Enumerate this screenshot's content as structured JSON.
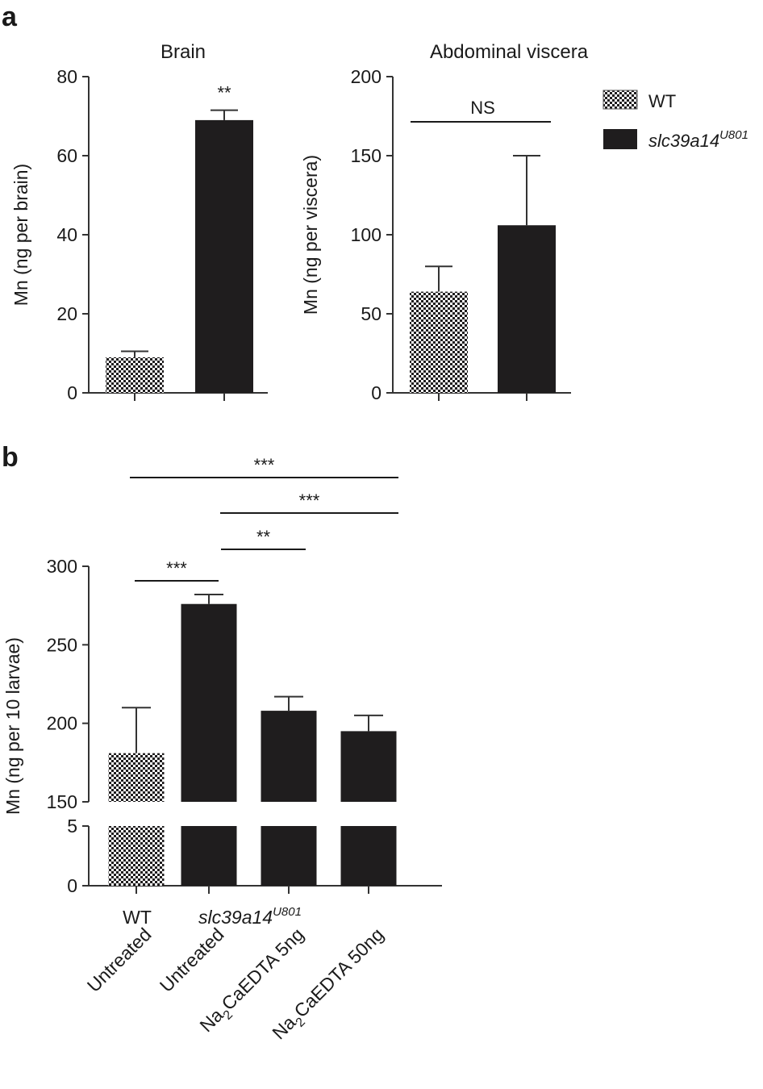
{
  "colors": {
    "mutant": "#1f1d1e",
    "axis": "#333333",
    "checker_dark": "#1f1d1e",
    "checker_light": "#ffffff"
  },
  "chart_data": [
    {
      "panel": "a",
      "type": "bar",
      "title": "Brain",
      "ylabel": "Mn (ng per brain)",
      "ylim": [
        0,
        80
      ],
      "yticks": [
        "0",
        "20",
        "40",
        "60",
        "80"
      ],
      "yticks_values": [
        0,
        20,
        40,
        60,
        80
      ],
      "categories": [
        "WT",
        "slc39a14U801"
      ],
      "values": [
        9,
        69
      ],
      "error_upper": [
        10.5,
        71.5
      ],
      "annotations": [
        {
          "text": "**",
          "bar": 1
        }
      ]
    },
    {
      "panel": "a",
      "type": "bar",
      "title": "Abdominal viscera",
      "ylabel": "Mn (ng per viscera)",
      "ylim": [
        0,
        200
      ],
      "yticks": [
        "0",
        "50",
        "100",
        "150",
        "200"
      ],
      "yticks_values": [
        0,
        50,
        100,
        150,
        200
      ],
      "categories": [
        "WT",
        "slc39a14U801"
      ],
      "values": [
        64,
        106
      ],
      "error_upper": [
        80,
        150
      ],
      "annotations": [
        {
          "text": "NS",
          "from": 0,
          "to": 1
        }
      ]
    },
    {
      "panel": "b",
      "type": "bar",
      "ylabel": "Mn (ng per 10 larvae)",
      "ylim_upper": [
        150,
        300
      ],
      "ylim_lower": [
        0,
        5
      ],
      "yticks_upper": [
        "150",
        "200",
        "250",
        "300"
      ],
      "yticks_upper_values": [
        150,
        200,
        250,
        300
      ],
      "yticks_lower": [
        "0",
        "5"
      ],
      "yticks_lower_values": [
        0,
        5
      ],
      "group_labels": [
        {
          "text": "WT",
          "italic": false
        },
        {
          "text": "slc39a14",
          "sup": "U801",
          "italic": true
        }
      ],
      "categories": [
        {
          "main": "Untreated",
          "sub": ""
        },
        {
          "main": "Untreated",
          "sub": ""
        },
        {
          "pre": "Na",
          "sub": "2",
          "main": "CaEDTA 5ng"
        },
        {
          "pre": "Na",
          "sub": "2",
          "main": "CaEDTA 50ng"
        }
      ],
      "genotype": [
        "WT",
        "mutant",
        "mutant",
        "mutant"
      ],
      "values": [
        181,
        276,
        208,
        195
      ],
      "error_upper": [
        210,
        282,
        217,
        205
      ],
      "annotations": [
        {
          "text": "***",
          "from": 0,
          "to": 1
        },
        {
          "text": "**",
          "from": 1,
          "to": 2
        },
        {
          "text": "***",
          "from": 1,
          "to": 3
        },
        {
          "text": "***",
          "from": 0,
          "to": 3
        }
      ]
    }
  ],
  "panels": {
    "a": "a",
    "b": "b"
  },
  "legend": [
    {
      "label": "WT",
      "pattern": "checker"
    },
    {
      "label": "slc39a14",
      "sup": "U801",
      "pattern": "solid"
    }
  ]
}
